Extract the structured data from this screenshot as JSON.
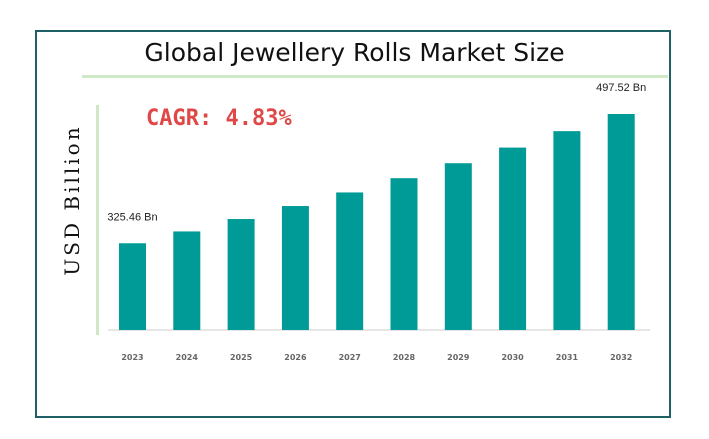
{
  "chart_data": {
    "type": "bar",
    "title": "Global Jewellery Rolls Market Size",
    "ylabel": "USD Billion",
    "annotation": "CAGR: 4.83%",
    "categories": [
      "2023",
      "2024",
      "2025",
      "2026",
      "2027",
      "2028",
      "2029",
      "2030",
      "2031",
      "2032"
    ],
    "values": [
      325.46,
      341.2,
      357.7,
      375.0,
      393.1,
      412.1,
      432.0,
      452.8,
      474.7,
      497.52
    ],
    "data_labels": {
      "0": "325.46 Bn",
      "9": "497.52 Bn"
    },
    "ylim": [
      210,
      520
    ],
    "grid": false,
    "colors": {
      "bar": "#009b96",
      "axis": "#cccccc",
      "cagr": "#e04848"
    }
  }
}
